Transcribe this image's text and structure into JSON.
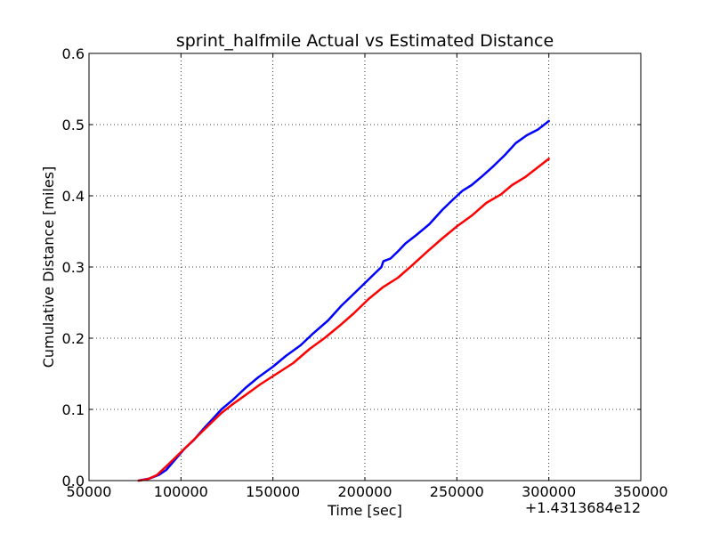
{
  "chart_data": {
    "type": "line",
    "title": "sprint_halfmile Actual vs Estimated Distance",
    "xlabel": "Time [sec]",
    "ylabel": "Cumulative Distance [miles]",
    "x_offset_label": "+1.4313684e12",
    "xlim": [
      50000,
      350000
    ],
    "ylim": [
      0,
      0.6
    ],
    "grid": true,
    "xticks": [
      "50000",
      "100000",
      "150000",
      "200000",
      "250000",
      "300000",
      "350000"
    ],
    "yticks": [
      "0.0",
      "0.1",
      "0.2",
      "0.3",
      "0.4",
      "0.5",
      "0.6"
    ],
    "series": [
      {
        "color": "#0000ff",
        "points": [
          [
            77000,
            0.0
          ],
          [
            83000,
            0.003
          ],
          [
            88000,
            0.008
          ],
          [
            92000,
            0.015
          ],
          [
            97000,
            0.03
          ],
          [
            102000,
            0.045
          ],
          [
            107000,
            0.057
          ],
          [
            112000,
            0.072
          ],
          [
            117000,
            0.086
          ],
          [
            122000,
            0.1
          ],
          [
            128000,
            0.113
          ],
          [
            135000,
            0.13
          ],
          [
            142000,
            0.145
          ],
          [
            150000,
            0.16
          ],
          [
            157000,
            0.175
          ],
          [
            165000,
            0.19
          ],
          [
            172000,
            0.207
          ],
          [
            180000,
            0.225
          ],
          [
            187000,
            0.245
          ],
          [
            195000,
            0.265
          ],
          [
            201000,
            0.28
          ],
          [
            205000,
            0.29
          ],
          [
            209000,
            0.3
          ],
          [
            210000,
            0.308
          ],
          [
            214000,
            0.312
          ],
          [
            218000,
            0.322
          ],
          [
            222000,
            0.333
          ],
          [
            228000,
            0.345
          ],
          [
            235000,
            0.36
          ],
          [
            242000,
            0.38
          ],
          [
            248000,
            0.395
          ],
          [
            253000,
            0.407
          ],
          [
            258000,
            0.415
          ],
          [
            264000,
            0.428
          ],
          [
            270000,
            0.442
          ],
          [
            276000,
            0.457
          ],
          [
            282000,
            0.474
          ],
          [
            288000,
            0.485
          ],
          [
            294000,
            0.493
          ],
          [
            300000,
            0.505
          ]
        ]
      },
      {
        "color": "#ff0000",
        "points": [
          [
            77000,
            0.0
          ],
          [
            82000,
            0.002
          ],
          [
            87000,
            0.008
          ],
          [
            92000,
            0.02
          ],
          [
            98000,
            0.035
          ],
          [
            104000,
            0.05
          ],
          [
            110000,
            0.065
          ],
          [
            116000,
            0.08
          ],
          [
            122000,
            0.095
          ],
          [
            128000,
            0.107
          ],
          [
            135000,
            0.12
          ],
          [
            143000,
            0.135
          ],
          [
            152000,
            0.15
          ],
          [
            161000,
            0.165
          ],
          [
            170000,
            0.185
          ],
          [
            178000,
            0.2
          ],
          [
            186000,
            0.217
          ],
          [
            194000,
            0.235
          ],
          [
            202000,
            0.255
          ],
          [
            210000,
            0.272
          ],
          [
            218000,
            0.285
          ],
          [
            226000,
            0.303
          ],
          [
            234000,
            0.322
          ],
          [
            242000,
            0.34
          ],
          [
            250000,
            0.357
          ],
          [
            258000,
            0.372
          ],
          [
            266000,
            0.39
          ],
          [
            274000,
            0.402
          ],
          [
            280000,
            0.415
          ],
          [
            287000,
            0.426
          ],
          [
            294000,
            0.44
          ],
          [
            300000,
            0.452
          ]
        ]
      }
    ]
  }
}
